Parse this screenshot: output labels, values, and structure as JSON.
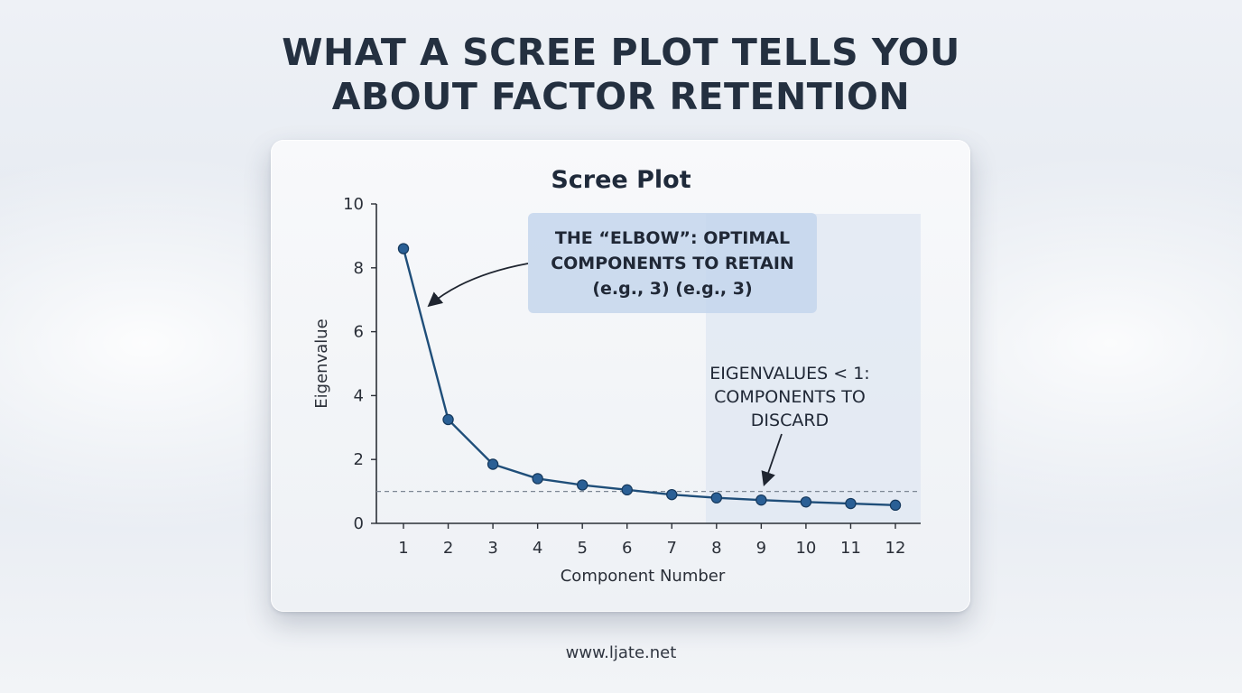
{
  "headline": {
    "line1": "WHAT A SCREE PLOT TELLS YOU",
    "line2": "ABOUT FACTOR RETENTION"
  },
  "chart_data": {
    "type": "line",
    "title": "Scree Plot",
    "xlabel": "Component Number",
    "ylabel": "Eigenvalue",
    "x": [
      1,
      2,
      3,
      4,
      5,
      6,
      7,
      8,
      9,
      10,
      11,
      12
    ],
    "series": [
      {
        "values": [
          8.6,
          3.25,
          1.85,
          1.4,
          1.2,
          1.05,
          0.9,
          0.8,
          0.73,
          0.67,
          0.62,
          0.57
        ]
      }
    ],
    "xlim": [
      1,
      12
    ],
    "ylim": [
      0,
      10
    ],
    "yticks": [
      0,
      2,
      4,
      6,
      8,
      10
    ],
    "xticks": [
      1,
      2,
      3,
      4,
      5,
      6,
      7,
      8,
      9,
      10,
      11,
      12
    ],
    "reference_line": {
      "y": 1,
      "style": "dashed"
    },
    "grid": false,
    "colors": {
      "line": "#1f4e79",
      "marker": "#2a5f95",
      "reference": "#7d8794",
      "shaded_region": "#dfe7f1",
      "callout_fill": "#c4d6ec"
    },
    "annotations": {
      "elbow": {
        "lines": [
          "THE “ELBOW”: OPTIMAL",
          "COMPONENTS TO RETAIN",
          "(e.g., 3) (e.g., 3)"
        ]
      },
      "discard": {
        "lines": [
          "EIGENVALUES < 1:",
          "COMPONENTS TO",
          "DISCARD"
        ]
      }
    }
  },
  "footer": {
    "url": "www.ljate.net"
  }
}
